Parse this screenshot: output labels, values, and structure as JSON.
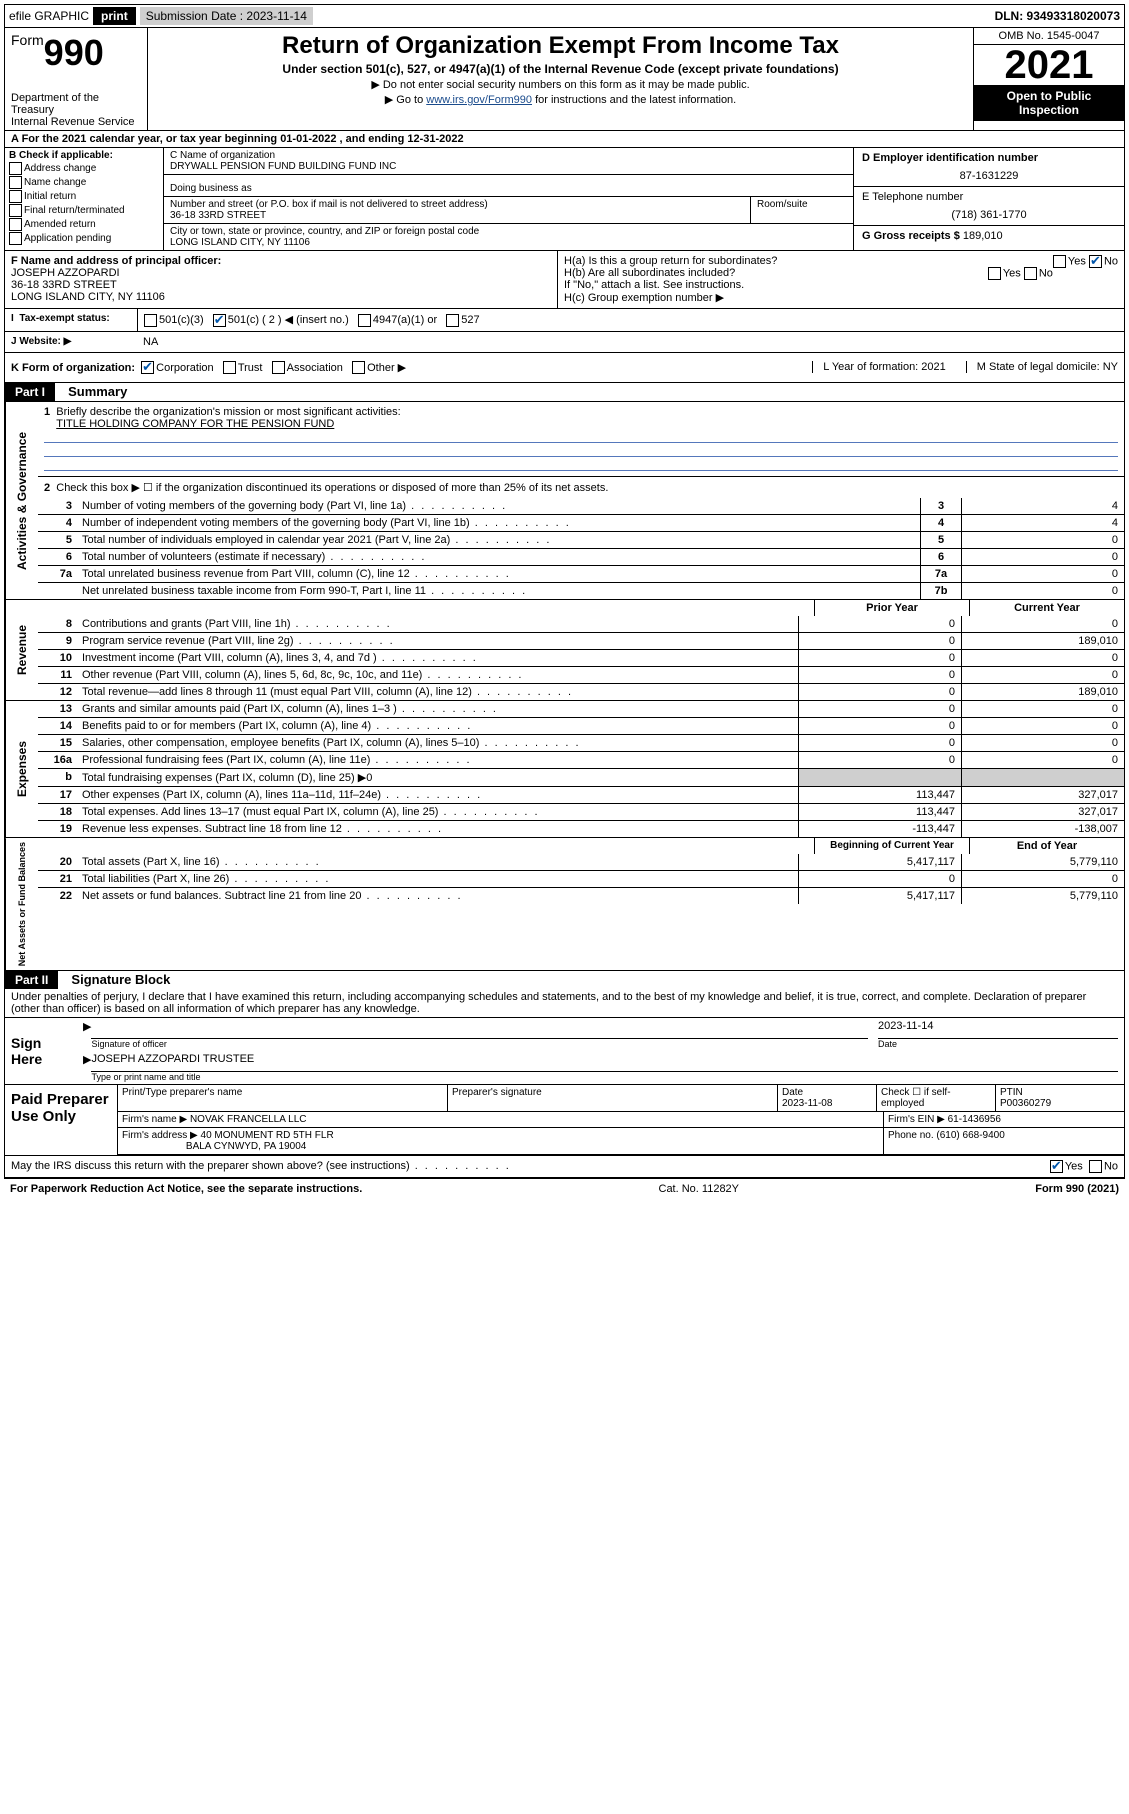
{
  "header_bar": {
    "efile": "efile GRAPHIC",
    "print": "print",
    "sub_lbl": "Submission Date : 2023-11-14",
    "dln": "DLN: 93493318020073"
  },
  "title": {
    "form_word": "Form",
    "form_num": "990",
    "main": "Return of Organization Exempt From Income Tax",
    "sub": "Under section 501(c), 527, or 4947(a)(1) of the Internal Revenue Code (except private foundations)",
    "note1": "▶ Do not enter social security numbers on this form as it may be made public.",
    "note2_pre": "▶ Go to ",
    "note2_link": "www.irs.gov/Form990",
    "note2_post": " for instructions and the latest information.",
    "dept1": "Department of the Treasury",
    "dept2": "Internal Revenue Service",
    "omb": "OMB No. 1545-0047",
    "year": "2021",
    "open": "Open to Public Inspection"
  },
  "line_a": "A For the 2021 calendar year, or tax year beginning 01-01-2022   , and ending 12-31-2022",
  "col_b": {
    "hdr": "B Check if applicable:",
    "opts": [
      "Address change",
      "Name change",
      "Initial return",
      "Final return/terminated",
      "Amended return",
      "Application pending"
    ]
  },
  "col_c": {
    "name_lbl": "C Name of organization",
    "name": "DRYWALL PENSION FUND BUILDING FUND INC",
    "dba_lbl": "Doing business as",
    "street_lbl": "Number and street (or P.O. box if mail is not delivered to street address)",
    "street": "36-18 33RD STREET",
    "room_lbl": "Room/suite",
    "city_lbl": "City or town, state or province, country, and ZIP or foreign postal code",
    "city": "LONG ISLAND CITY, NY  11106"
  },
  "col_d": {
    "ein_lbl": "D Employer identification number",
    "ein": "87-1631229",
    "tel_lbl": "E Telephone number",
    "tel": "(718) 361-1770",
    "gross_lbl": "G Gross receipts $",
    "gross": "189,010"
  },
  "sec_f": {
    "lbl": "F Name and address of principal officer:",
    "name": "JOSEPH AZZOPARDI",
    "addr1": "36-18 33RD STREET",
    "addr2": "LONG ISLAND CITY, NY  11106"
  },
  "sec_h": {
    "ha": "H(a)  Is this a group return for subordinates?",
    "hb": "H(b)  Are all subordinates included?",
    "hb_note": "If \"No,\" attach a list. See instructions.",
    "hc": "H(c)  Group exemption number ▶",
    "yes": "Yes",
    "no": "No"
  },
  "tax_status": {
    "lbl": "Tax-exempt status:",
    "o1": "501(c)(3)",
    "o2": "501(c) ( 2 ) ◀ (insert no.)",
    "o3": "4947(a)(1) or",
    "o4": "527"
  },
  "website": {
    "lbl": "J   Website: ▶",
    "val": "NA"
  },
  "k_row": {
    "k": "K Form of organization:",
    "opts": [
      "Corporation",
      "Trust",
      "Association",
      "Other ▶"
    ],
    "l": "L Year of formation: 2021",
    "m": "M State of legal domicile: NY"
  },
  "part1": {
    "hdr": "Part I",
    "title": "Summary",
    "l1": "Briefly describe the organization's mission or most significant activities:",
    "mission": "TITLE HOLDING COMPANY FOR THE PENSION FUND",
    "l2": "Check this box ▶ ☐  if the organization discontinued its operations or disposed of more than 25% of its net assets.",
    "lines_gov": [
      {
        "n": "3",
        "d": "Number of voting members of the governing body (Part VI, line 1a)",
        "rn": "3",
        "v": "4"
      },
      {
        "n": "4",
        "d": "Number of independent voting members of the governing body (Part VI, line 1b)",
        "rn": "4",
        "v": "4"
      },
      {
        "n": "5",
        "d": "Total number of individuals employed in calendar year 2021 (Part V, line 2a)",
        "rn": "5",
        "v": "0"
      },
      {
        "n": "6",
        "d": "Total number of volunteers (estimate if necessary)",
        "rn": "6",
        "v": "0"
      },
      {
        "n": "7a",
        "d": "Total unrelated business revenue from Part VIII, column (C), line 12",
        "rn": "7a",
        "v": "0"
      },
      {
        "n": "",
        "d": "Net unrelated business taxable income from Form 990-T, Part I, line 11",
        "rn": "7b",
        "v": "0"
      }
    ],
    "col_hdr1": "Prior Year",
    "col_hdr2": "Current Year",
    "lines_rev": [
      {
        "n": "8",
        "d": "Contributions and grants (Part VIII, line 1h)",
        "p": "0",
        "c": "0"
      },
      {
        "n": "9",
        "d": "Program service revenue (Part VIII, line 2g)",
        "p": "0",
        "c": "189,010"
      },
      {
        "n": "10",
        "d": "Investment income (Part VIII, column (A), lines 3, 4, and 7d )",
        "p": "0",
        "c": "0"
      },
      {
        "n": "11",
        "d": "Other revenue (Part VIII, column (A), lines 5, 6d, 8c, 9c, 10c, and 11e)",
        "p": "0",
        "c": "0"
      },
      {
        "n": "12",
        "d": "Total revenue—add lines 8 through 11 (must equal Part VIII, column (A), line 12)",
        "p": "0",
        "c": "189,010"
      }
    ],
    "lines_exp": [
      {
        "n": "13",
        "d": "Grants and similar amounts paid (Part IX, column (A), lines 1–3 )",
        "p": "0",
        "c": "0"
      },
      {
        "n": "14",
        "d": "Benefits paid to or for members (Part IX, column (A), line 4)",
        "p": "0",
        "c": "0"
      },
      {
        "n": "15",
        "d": "Salaries, other compensation, employee benefits (Part IX, column (A), lines 5–10)",
        "p": "0",
        "c": "0"
      },
      {
        "n": "16a",
        "d": "Professional fundraising fees (Part IX, column (A), line 11e)",
        "p": "0",
        "c": "0"
      },
      {
        "n": "b",
        "d": "Total fundraising expenses (Part IX, column (D), line 25) ▶0",
        "p": "",
        "c": "",
        "grey": true
      },
      {
        "n": "17",
        "d": "Other expenses (Part IX, column (A), lines 11a–11d, 11f–24e)",
        "p": "113,447",
        "c": "327,017"
      },
      {
        "n": "18",
        "d": "Total expenses. Add lines 13–17 (must equal Part IX, column (A), line 25)",
        "p": "113,447",
        "c": "327,017"
      },
      {
        "n": "19",
        "d": "Revenue less expenses. Subtract line 18 from line 12",
        "p": "-113,447",
        "c": "-138,007"
      }
    ],
    "col_hdr3": "Beginning of Current Year",
    "col_hdr4": "End of Year",
    "lines_net": [
      {
        "n": "20",
        "d": "Total assets (Part X, line 16)",
        "p": "5,417,117",
        "c": "5,779,110"
      },
      {
        "n": "21",
        "d": "Total liabilities (Part X, line 26)",
        "p": "0",
        "c": "0"
      },
      {
        "n": "22",
        "d": "Net assets or fund balances. Subtract line 21 from line 20",
        "p": "5,417,117",
        "c": "5,779,110"
      }
    ],
    "vlab_gov": "Activities & Governance",
    "vlab_rev": "Revenue",
    "vlab_exp": "Expenses",
    "vlab_net": "Net Assets or Fund Balances"
  },
  "part2": {
    "hdr": "Part II",
    "title": "Signature Block",
    "decl": "Under penalties of perjury, I declare that I have examined this return, including accompanying schedules and statements, and to the best of my knowledge and belief, it is true, correct, and complete. Declaration of preparer (other than officer) is based on all information of which preparer has any knowledge.",
    "sign_here": "Sign Here",
    "sig_officer": "Signature of officer",
    "sig_date": "2023-11-14",
    "date_lbl": "Date",
    "officer_name": "JOSEPH AZZOPARDI TRUSTEE",
    "type_name": "Type or print name and title",
    "paid": "Paid Preparer Use Only",
    "prep_name_lbl": "Print/Type preparer's name",
    "prep_sig_lbl": "Preparer's signature",
    "prep_date_lbl": "Date",
    "prep_date": "2023-11-08",
    "check_if": "Check ☐ if self-employed",
    "ptin_lbl": "PTIN",
    "ptin": "P00360279",
    "firm_name_lbl": "Firm's name    ▶",
    "firm_name": "NOVAK FRANCELLA LLC",
    "firm_ein_lbl": "Firm's EIN ▶",
    "firm_ein": "61-1436956",
    "firm_addr_lbl": "Firm's address ▶",
    "firm_addr1": "40 MONUMENT RD 5TH FLR",
    "firm_addr2": "BALA CYNWYD, PA  19004",
    "phone_lbl": "Phone no.",
    "phone": "(610) 668-9400",
    "may_irs": "May the IRS discuss this return with the preparer shown above? (see instructions)"
  },
  "footer": {
    "left": "For Paperwork Reduction Act Notice, see the separate instructions.",
    "mid": "Cat. No. 11282Y",
    "right": "Form 990 (2021)"
  }
}
